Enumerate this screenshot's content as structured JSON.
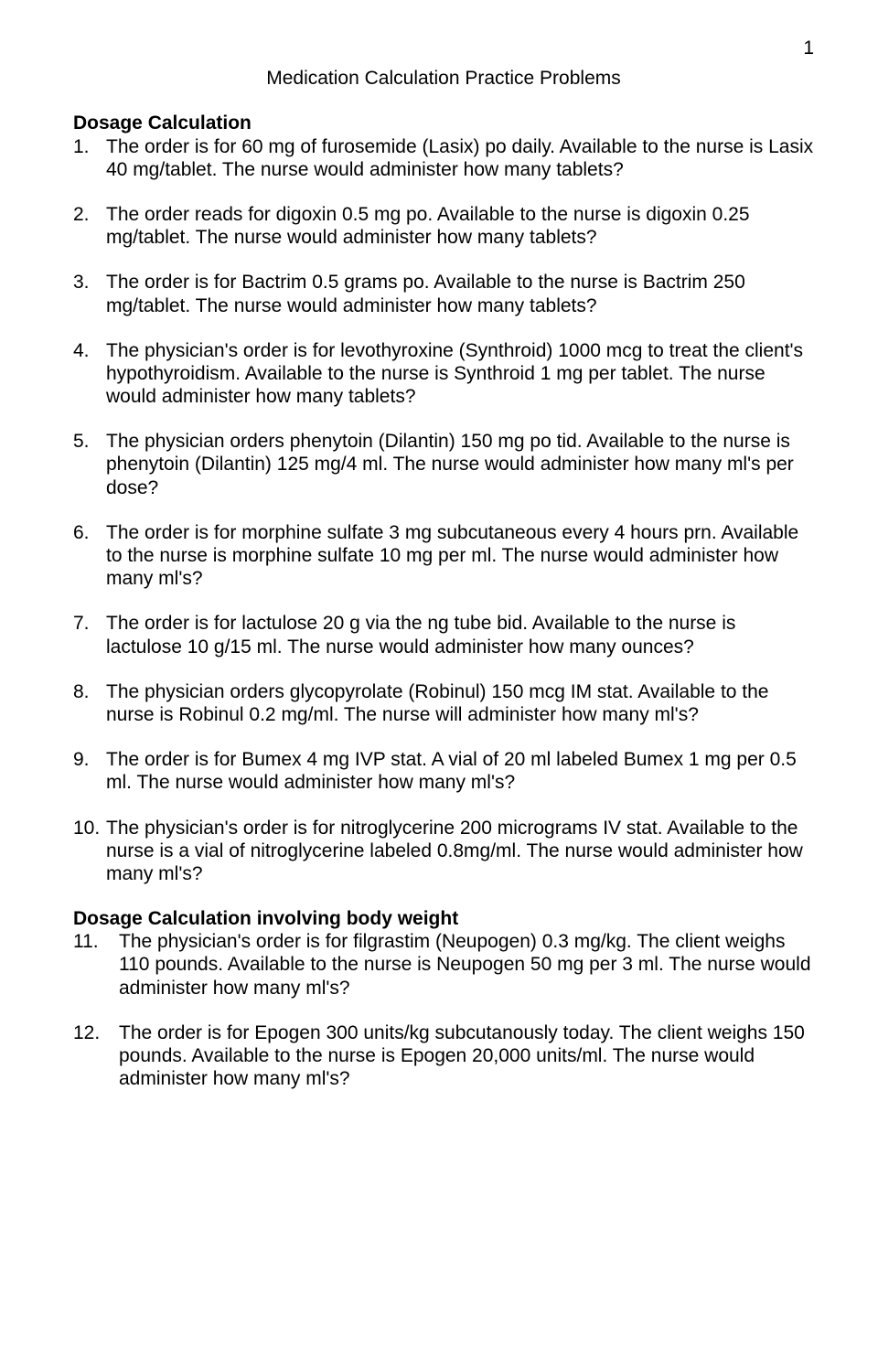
{
  "page_number": "1",
  "title": "Medication Calculation Practice Problems",
  "section1_heading": "Dosage Calculation",
  "section2_heading": "Dosage Calculation involving body weight",
  "questions": {
    "q1": {
      "num": "1.",
      "text": "The order is for 60 mg of furosemide (Lasix) po daily. Available to the nurse is Lasix 40 mg/tablet. The nurse would administer how many tablets?"
    },
    "q2": {
      "num": "2.",
      "text": "The order reads for digoxin 0.5 mg po. Available to the nurse is digoxin 0.25 mg/tablet. The nurse would administer how many tablets?"
    },
    "q3": {
      "num": "3.",
      "text": "The order is for Bactrim 0.5 grams po. Available to the nurse is Bactrim 250 mg/tablet. The nurse would administer how many tablets?"
    },
    "q4": {
      "num": "4.",
      "text": "The physician's order is for levothyroxine (Synthroid) 1000 mcg to treat the client's hypothyroidism. Available to the nurse is Synthroid 1 mg per tablet. The nurse would administer how many tablets?"
    },
    "q5": {
      "num": "5.",
      "text": "The physician orders phenytoin (Dilantin) 150 mg po tid. Available to the nurse is phenytoin (Dilantin) 125 mg/4 ml. The nurse would administer how many ml's per dose?"
    },
    "q6": {
      "num": "6.",
      "text": "The order is for morphine sulfate 3 mg subcutaneous every 4 hours prn. Available to the nurse is morphine sulfate 10 mg per ml. The nurse would administer how many ml's?"
    },
    "q7": {
      "num": "7.",
      "text": "The order is for lactulose 20 g via the ng tube bid. Available to the nurse is lactulose 10 g/15 ml. The nurse would administer how many ounces?"
    },
    "q8": {
      "num": "8.",
      "text": "The physician orders glycopyrolate (Robinul) 150 mcg IM stat. Available to the nurse is Robinul 0.2 mg/ml. The nurse will administer how many ml's?"
    },
    "q9": {
      "num": "9.",
      "text": "The order is for Bumex 4 mg IVP stat. A vial of 20 ml labeled Bumex 1 mg per 0.5 ml. The nurse would administer how many ml's?"
    },
    "q10": {
      "num": "10.",
      "text": "The physician's order is for nitroglycerine 200 micrograms IV stat. Available to the nurse is a vial of nitroglycerine labeled 0.8mg/ml. The nurse would administer how many ml's?"
    },
    "q11": {
      "num": "11.",
      "text": "The physician's order is for filgrastim (Neupogen) 0.3 mg/kg. The client weighs 110 pounds. Available to the nurse is Neupogen 50 mg per 3 ml. The nurse would administer how many ml's?"
    },
    "q12": {
      "num": "12.",
      "text": "The order is for Epogen 300 units/kg subcutanously today. The client weighs 150 pounds. Available to the nurse is Epogen 20,000 units/ml. The nurse would administer how many ml's?"
    }
  }
}
